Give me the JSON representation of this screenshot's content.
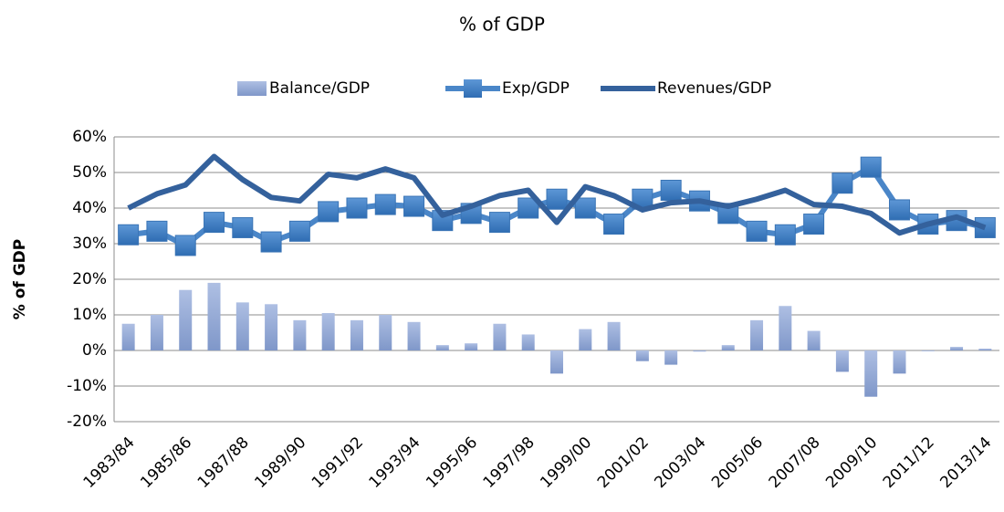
{
  "chart_data": {
    "type": "combo",
    "title": "% of GDP",
    "y_label": "% of GDP",
    "categories": [
      "1983/84",
      null,
      "1985/86",
      null,
      "1987/88",
      null,
      "1989/90",
      null,
      "1991/92",
      null,
      "1993/94",
      null,
      "1995/96",
      null,
      "1997/98",
      null,
      "1999/00",
      null,
      "2001/02",
      null,
      "2003/04",
      null,
      "2005/06",
      null,
      "2007/08",
      null,
      "2009/10",
      null,
      "2011/12",
      null,
      "2013/14"
    ],
    "series": [
      {
        "name": "Balance/GDP",
        "type": "bar",
        "color": "#9aafd8",
        "values": [
          7.5,
          10,
          17,
          19,
          13.5,
          13,
          8.5,
          10.5,
          8.5,
          10,
          8,
          1.5,
          2,
          7.5,
          4.5,
          -6.5,
          6,
          8,
          -3,
          -4,
          -0.3,
          1.5,
          8.5,
          12.5,
          5.5,
          -6,
          -13,
          -6.5,
          -0.2,
          1,
          0.5
        ]
      },
      {
        "name": "Exp/GDP",
        "type": "line",
        "marker": "square",
        "color": "#4a86c8",
        "values": [
          32.5,
          33.5,
          29.5,
          36,
          34.5,
          30.5,
          33.5,
          39,
          40,
          41,
          40.5,
          36.5,
          38.5,
          36,
          40,
          42.5,
          40,
          35.5,
          42.5,
          45,
          42,
          38.5,
          33.5,
          32.5,
          35.5,
          47,
          51.5,
          39.5,
          35.5,
          36.5,
          34.5
        ]
      },
      {
        "name": "Revenues/GDP",
        "type": "line",
        "color": "#34619c",
        "values": [
          40,
          44,
          46.5,
          54.5,
          48,
          43,
          42,
          49.5,
          48.5,
          51,
          48.5,
          38,
          40.5,
          43.5,
          45,
          36,
          46,
          43.5,
          39.5,
          41.5,
          42,
          40.5,
          42.5,
          45,
          41,
          40.5,
          38.5,
          33,
          35.5,
          37.5,
          34.5
        ]
      }
    ],
    "ylim": [
      -20,
      60
    ],
    "yticks": [
      {
        "value": -20,
        "label": "-20%"
      },
      {
        "value": -10,
        "label": "-10%"
      },
      {
        "value": 0,
        "label": "0%"
      },
      {
        "value": 10,
        "label": "10%"
      },
      {
        "value": 20,
        "label": "20%"
      },
      {
        "value": 30,
        "label": "30%"
      },
      {
        "value": 40,
        "label": "40%"
      },
      {
        "value": 50,
        "label": "50%"
      },
      {
        "value": 60,
        "label": "60%"
      }
    ],
    "grid": true,
    "legend": "top"
  }
}
